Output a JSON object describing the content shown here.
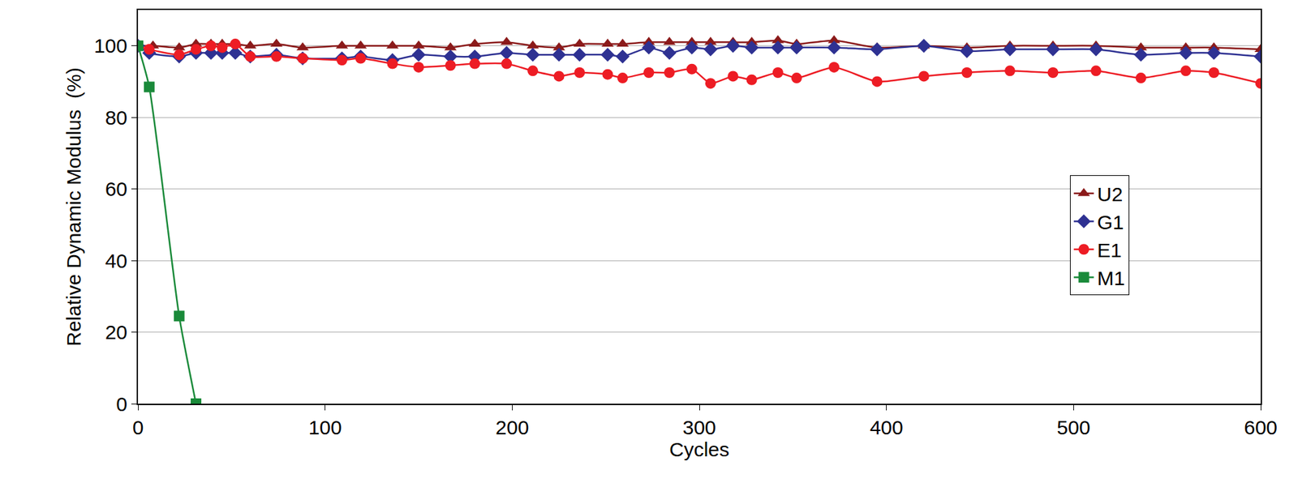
{
  "chart_data": {
    "type": "line",
    "x_label": "Cycles",
    "y_label": "Relative Dynamic Modulus  (%)",
    "xlim": [
      0,
      600
    ],
    "xticks": [
      0,
      100,
      200,
      300,
      400,
      500,
      600
    ],
    "ylim": [
      0,
      110
    ],
    "yticks": [
      0,
      20,
      40,
      60,
      80,
      100
    ],
    "grid": true,
    "legend": "lower right",
    "line_style": "solid",
    "series": [
      {
        "name": "U2",
        "color": "#8b1a1a",
        "marker": "triangle-up",
        "x": [
          0,
          8,
          22,
          31,
          39,
          45,
          52,
          60,
          74,
          88,
          109,
          119,
          136,
          150,
          167,
          180,
          197,
          211,
          225,
          236,
          251,
          259,
          273,
          284,
          296,
          306,
          318,
          328,
          342,
          352,
          372,
          395,
          420,
          443,
          466,
          489,
          512,
          536,
          560,
          575,
          600
        ],
        "values": [
          100,
          100,
          99.5,
          100.5,
          100.5,
          100.5,
          100.5,
          100,
          100.5,
          99.5,
          100,
          100,
          100,
          100,
          99.5,
          100.5,
          101,
          100,
          99.5,
          100.5,
          100.5,
          100.5,
          101,
          101,
          101,
          101,
          101,
          101,
          101.5,
          100.5,
          101.5,
          99.5,
          100,
          99.5,
          100,
          100,
          100,
          99.5,
          99.5,
          99.5,
          99
        ]
      },
      {
        "name": "G1",
        "color": "#2e3192",
        "marker": "diamond",
        "x": [
          0,
          6,
          22,
          31,
          39,
          45,
          52,
          60,
          74,
          88,
          109,
          119,
          136,
          150,
          167,
          180,
          197,
          211,
          225,
          236,
          251,
          259,
          273,
          284,
          296,
          306,
          318,
          328,
          342,
          352,
          372,
          395,
          420,
          443,
          466,
          489,
          512,
          536,
          560,
          575,
          600
        ],
        "values": [
          100,
          98,
          97,
          98,
          98,
          98,
          98,
          97,
          97.5,
          96.5,
          96.5,
          97,
          96,
          97.5,
          97,
          97,
          98,
          97.5,
          97.5,
          97.5,
          97.5,
          97,
          99.5,
          98,
          99.5,
          99,
          100,
          99.5,
          99.5,
          99.5,
          99.5,
          99,
          100,
          98.5,
          99,
          99,
          99,
          97.5,
          98,
          98,
          97
        ]
      },
      {
        "name": "E1",
        "color": "#ed1c24",
        "marker": "circle",
        "x": [
          0,
          6,
          22,
          31,
          39,
          45,
          52,
          60,
          74,
          88,
          109,
          119,
          136,
          150,
          167,
          180,
          197,
          211,
          225,
          236,
          251,
          259,
          273,
          284,
          296,
          306,
          318,
          328,
          342,
          352,
          372,
          395,
          420,
          443,
          466,
          489,
          512,
          536,
          560,
          575,
          600
        ],
        "values": [
          100,
          99,
          97.5,
          99,
          100,
          99.5,
          100.5,
          97,
          97,
          96.5,
          96,
          96.5,
          95,
          94,
          94.5,
          95,
          95,
          93,
          91.5,
          92.5,
          92,
          91,
          92.5,
          92.5,
          93.5,
          89.5,
          91.5,
          90.5,
          92.5,
          91,
          94,
          90,
          91.5,
          92.5,
          93,
          92.5,
          93,
          91,
          93,
          92.5,
          89.5
        ]
      },
      {
        "name": "M1",
        "color": "#1a8a3a",
        "marker": "square",
        "x": [
          0,
          6,
          22,
          31
        ],
        "values": [
          100,
          88.5,
          24.5,
          0
        ]
      }
    ]
  }
}
